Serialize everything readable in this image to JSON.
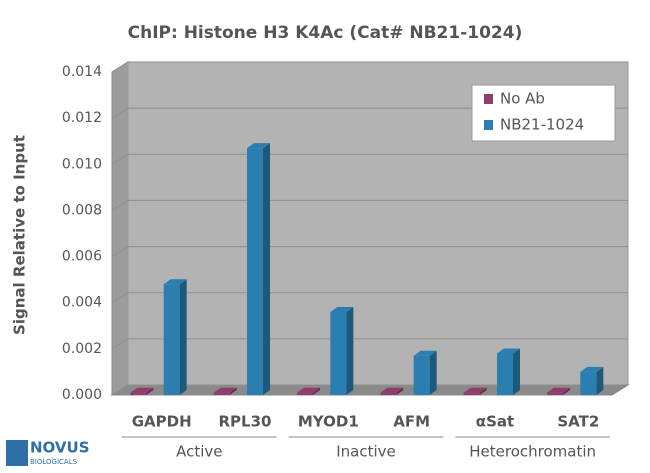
{
  "chart_data": {
    "type": "bar3d",
    "title": "ChIP: Histone H3 K4Ac (Cat# NB21-1024)",
    "y_label": "Signal Relative to Input",
    "categories": [
      "GAPDH",
      "RPL30",
      "MYOD1",
      "AFM",
      "αSat",
      "SAT2"
    ],
    "group_labels": [
      "Active",
      "Inactive",
      "Heterochromatin"
    ],
    "series": [
      {
        "name": "No Ab",
        "color": "#8e3e6a",
        "values": [
          0.0001,
          0.0001,
          0.0001,
          0.0001,
          0.0001,
          0.0001
        ]
      },
      {
        "name": "NB21-1024",
        "color": "#2a7fb0",
        "values": [
          0.0048,
          0.0107,
          0.0036,
          0.0017,
          0.0018,
          0.001
        ]
      }
    ],
    "ylim": [
      0,
      0.014
    ],
    "yticks": [
      {
        "value": 0,
        "label": "0.000"
      },
      {
        "value": 0.002,
        "label": "0.002"
      },
      {
        "value": 0.004,
        "label": "0.004"
      },
      {
        "value": 0.006,
        "label": "0.006"
      },
      {
        "value": 0.008,
        "label": "0.008"
      },
      {
        "value": 0.01,
        "label": "0.010"
      },
      {
        "value": 0.012,
        "label": "0.012"
      },
      {
        "value": 0.014,
        "label": "0.014"
      }
    ],
    "grid": true,
    "legend": "top-right"
  },
  "logo": {
    "name": "NOVUS",
    "sub": "BIOLOGICALS"
  }
}
